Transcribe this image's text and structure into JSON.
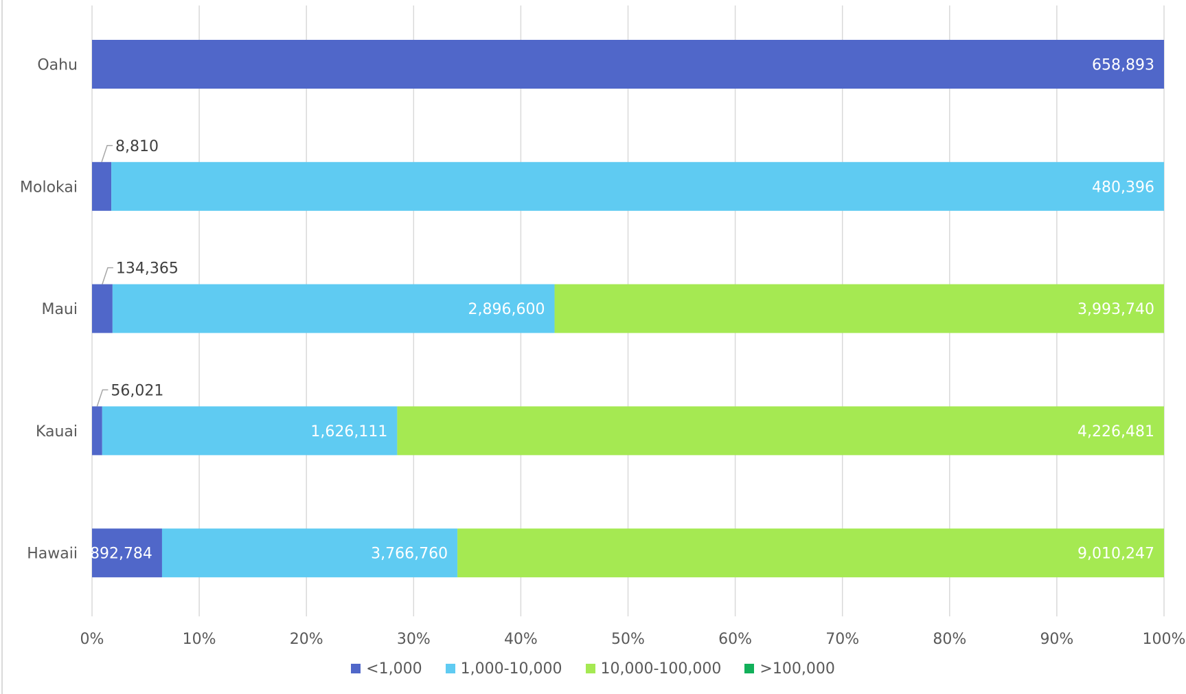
{
  "chart_data": {
    "type": "bar",
    "orientation": "horizontal",
    "stacked": "percent",
    "categories": [
      "Oahu",
      "Molokai",
      "Maui",
      "Kauai",
      "Hawaii"
    ],
    "series": [
      {
        "name": "<1,000",
        "color": "#5067C9",
        "values": [
          658893,
          8810,
          134365,
          56021,
          892784
        ],
        "labels": [
          "658,893",
          "8,810",
          "134,365",
          "56,021",
          "892,784"
        ]
      },
      {
        "name": "1,000-10,000",
        "color": "#5FCBF2",
        "values": [
          0,
          480396,
          2896600,
          1626111,
          3766760
        ],
        "labels": [
          "",
          "480,396",
          "2,896,600",
          "1,626,111",
          "3,766,760"
        ]
      },
      {
        "name": "10,000-100,000",
        "color": "#A5E952",
        "values": [
          0,
          0,
          3993740,
          4226481,
          9010247
        ],
        "labels": [
          "",
          "",
          "3,993,740",
          "4,226,481",
          "9,010,247"
        ]
      },
      {
        "name": ">100,000",
        "color": "#12B05A",
        "values": [
          0,
          0,
          0,
          0,
          0
        ],
        "labels": [
          "",
          "",
          "",
          "",
          ""
        ]
      }
    ],
    "x_ticks": [
      "0%",
      "10%",
      "20%",
      "30%",
      "40%",
      "50%",
      "60%",
      "70%",
      "80%",
      "90%",
      "100%"
    ],
    "xlim": [
      0,
      100
    ],
    "xlabel": "",
    "ylabel": "",
    "title": "",
    "grid": true,
    "legend_position": "bottom",
    "label_color": "#ffffff",
    "callout_label_color": "#404040",
    "axis_text_color": "#595959",
    "gridline_color": "#D9D9D9"
  }
}
